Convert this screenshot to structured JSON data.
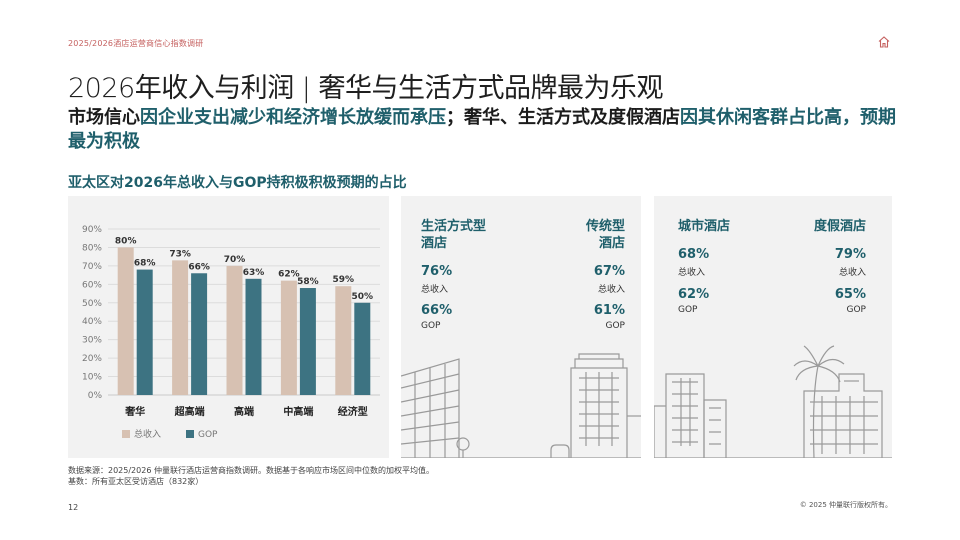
{
  "header": {
    "breadcrumb": "2025/2026酒店运营商信心指数调研",
    "title": "2026年收入与利润 | 奢华与生活方式品牌最为乐观",
    "subtitle_part1": "市场信心",
    "subtitle_accent1": "因企业支出减少和经济增长放缓而承压",
    "subtitle_part2": "；奢华、生活方式及度假酒店",
    "subtitle_accent2": "因其休闲客群占比高，预期最为积极"
  },
  "chart_title": "亚太区对2026年总收入与GOP持积极积极预期的占比",
  "chart_data": {
    "type": "bar",
    "categories": [
      "奢华",
      "超高端",
      "高端",
      "中高端",
      "经济型"
    ],
    "series": [
      {
        "name": "总收入",
        "values": [
          80,
          73,
          70,
          62,
          59
        ],
        "color": "#d7c1b2"
      },
      {
        "name": "GOP",
        "values": [
          68,
          66,
          63,
          58,
          50
        ],
        "color": "#3d7382"
      }
    ],
    "ylim": [
      0,
      90
    ],
    "yticks": [
      "0%",
      "10%",
      "20%",
      "30%",
      "40%",
      "50%",
      "60%",
      "70%",
      "80%",
      "90%"
    ],
    "value_suffix": "%",
    "grid": true,
    "legend": "bottom-left"
  },
  "panels": {
    "lifestyle": {
      "name_line1": "生活方式型",
      "name_line2": "酒店",
      "revenue": "76%",
      "revenue_label": "总收入",
      "gop": "66%",
      "gop_label": "GOP"
    },
    "traditional": {
      "name_line1": "传统型",
      "name_line2": "酒店",
      "revenue": "67%",
      "revenue_label": "总收入",
      "gop": "61%",
      "gop_label": "GOP"
    },
    "city": {
      "name": "城市酒店",
      "revenue": "68%",
      "revenue_label": "总收入",
      "gop": "62%",
      "gop_label": "GOP"
    },
    "resort": {
      "name": "度假酒店",
      "revenue": "79%",
      "revenue_label": "总收入",
      "gop": "65%",
      "gop_label": "GOP"
    }
  },
  "footer": {
    "source": "数据来源：2025/2026 仲量联行酒店运营商指数调研。数据基于各响应市场区间中位数的加权平均值。",
    "base": "基数：所有亚太区受访酒店（832家）",
    "page_number": "12",
    "copyright": "© 2025 仲量联行版权所有。"
  },
  "icons": {
    "home": "home-icon"
  },
  "colors": {
    "accent": "#1f5f6b",
    "breadcrumb": "#c5605f",
    "panel_bg": "#f2f2f2"
  }
}
